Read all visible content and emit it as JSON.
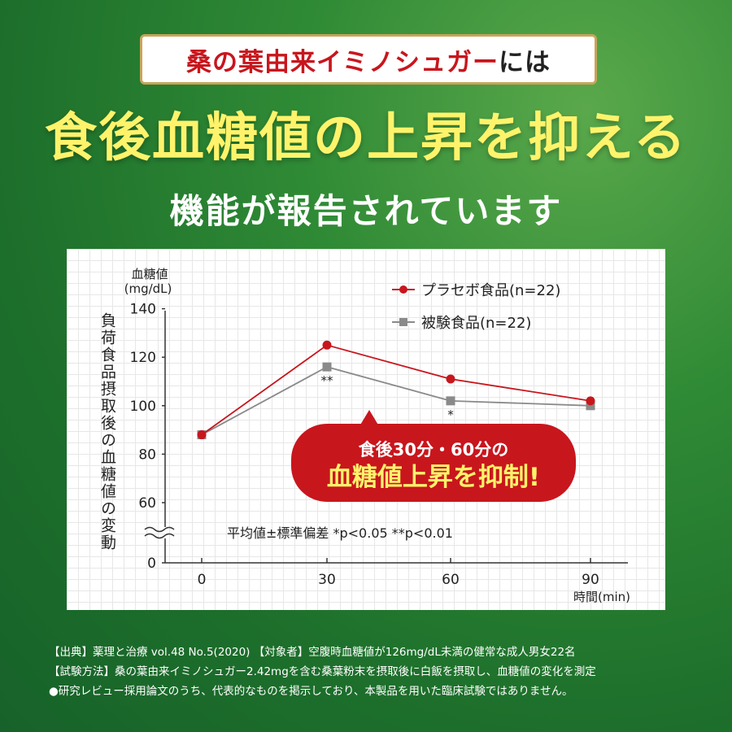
{
  "banner": {
    "highlight": "桑の葉由来イミノシュガー",
    "suffix": "には"
  },
  "headline": "食後血糖値の上昇を抑える",
  "subheadline": "機能が報告されています",
  "chart_data": {
    "type": "line",
    "ylabel_lines": [
      "血糖値",
      "(mg/dL)"
    ],
    "ylabel_vertical": "負荷食品摂取後の血糖値の変動",
    "xlabel": "時間(min)",
    "x": [
      0,
      30,
      60,
      90
    ],
    "x_ticks": [
      "0",
      "30",
      "60",
      "90"
    ],
    "y_ticks": [
      "140",
      "120",
      "100",
      "80",
      "60",
      "0"
    ],
    "ylim": [
      0,
      140
    ],
    "axis_break": "between 60 and 0",
    "series": [
      {
        "name": "プラセボ食品(n=22)",
        "values": [
          88,
          125,
          111,
          102
        ],
        "color": "#c8161d",
        "marker": "circle"
      },
      {
        "name": "被験食品(n=22)",
        "values": [
          88,
          116,
          102,
          100
        ],
        "color": "#8a8a8a",
        "marker": "square"
      }
    ],
    "significance": [
      {
        "x": 30,
        "label": "**"
      },
      {
        "x": 60,
        "label": "*"
      }
    ],
    "stat_note": "平均値±標準偏差 *p<0.05 **p<0.01",
    "callout_line1": "食後30分・60分の",
    "callout_line2": "血糖値上昇を抑制!",
    "legend_position": "top-right",
    "grid": true
  },
  "footer": {
    "line1": "【出典】薬理と治療 vol.48 No.5(2020) 【対象者】空腹時血糖値が126mg/dL未満の健常な成人男女22名",
    "line2": "【試験方法】桑の葉由来イミノシュガー2.42mgを含む桑葉粉末を摂取後に白飯を摂取し、血糖値の変化を測定",
    "line3": "●研究レビュー採用論文のうち、代表的なものを掲示しており、本製品を用いた臨床試験ではありません。"
  },
  "colors": {
    "accent_red": "#c8161d",
    "headline_yellow": "#fff36b",
    "bg_green": "#2f8a35",
    "gold_border": "#c9a45a"
  }
}
